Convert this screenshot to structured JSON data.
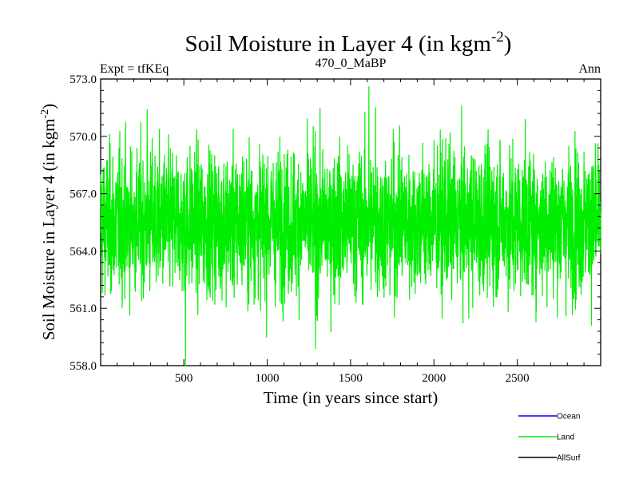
{
  "chart_data": {
    "type": "line",
    "title": "Soil Moisture in Layer 4 (in kgm",
    "title_superscript": "-2",
    "title_suffix": ")",
    "subtitle_left": "Expt = tfKEq",
    "subtitle_center": "470_0_MaBP",
    "subtitle_right": "Ann",
    "xlabel": "Time (in years since start)",
    "ylabel": "Soil Moisture in Layer 4 (in kgm",
    "ylabel_superscript": "-2",
    "ylabel_suffix": ")",
    "xlim": [
      1,
      3000
    ],
    "ylim": [
      558.0,
      573.0
    ],
    "xticks": [
      500,
      1000,
      1500,
      2000,
      2500
    ],
    "xtick_labels": [
      "500",
      "1000",
      "1500",
      "2000",
      "2500"
    ],
    "yticks": [
      558.0,
      561.0,
      564.0,
      567.0,
      570.0,
      573.0
    ],
    "ytick_labels": [
      "558.0",
      "561.0",
      "564.0",
      "567.0",
      "570.0",
      "573.0"
    ],
    "legend_position": "bottom-right, below plot",
    "series": [
      {
        "name": "Ocean",
        "color": "#0000ff",
        "values": []
      },
      {
        "name": "Land",
        "color": "#00ee00",
        "mean": 565.5,
        "min": 558.0,
        "max": 572.6,
        "n_points": 3000
      },
      {
        "name": "AllSurf",
        "color": "#000000",
        "values": []
      }
    ],
    "notable_points": [
      {
        "x": 510,
        "y": 558.0
      },
      {
        "x": 1610,
        "y": 572.6
      },
      {
        "x": 1650,
        "y": 571.5
      },
      {
        "x": 280,
        "y": 571.4
      },
      {
        "x": 1290,
        "y": 558.9
      }
    ]
  }
}
